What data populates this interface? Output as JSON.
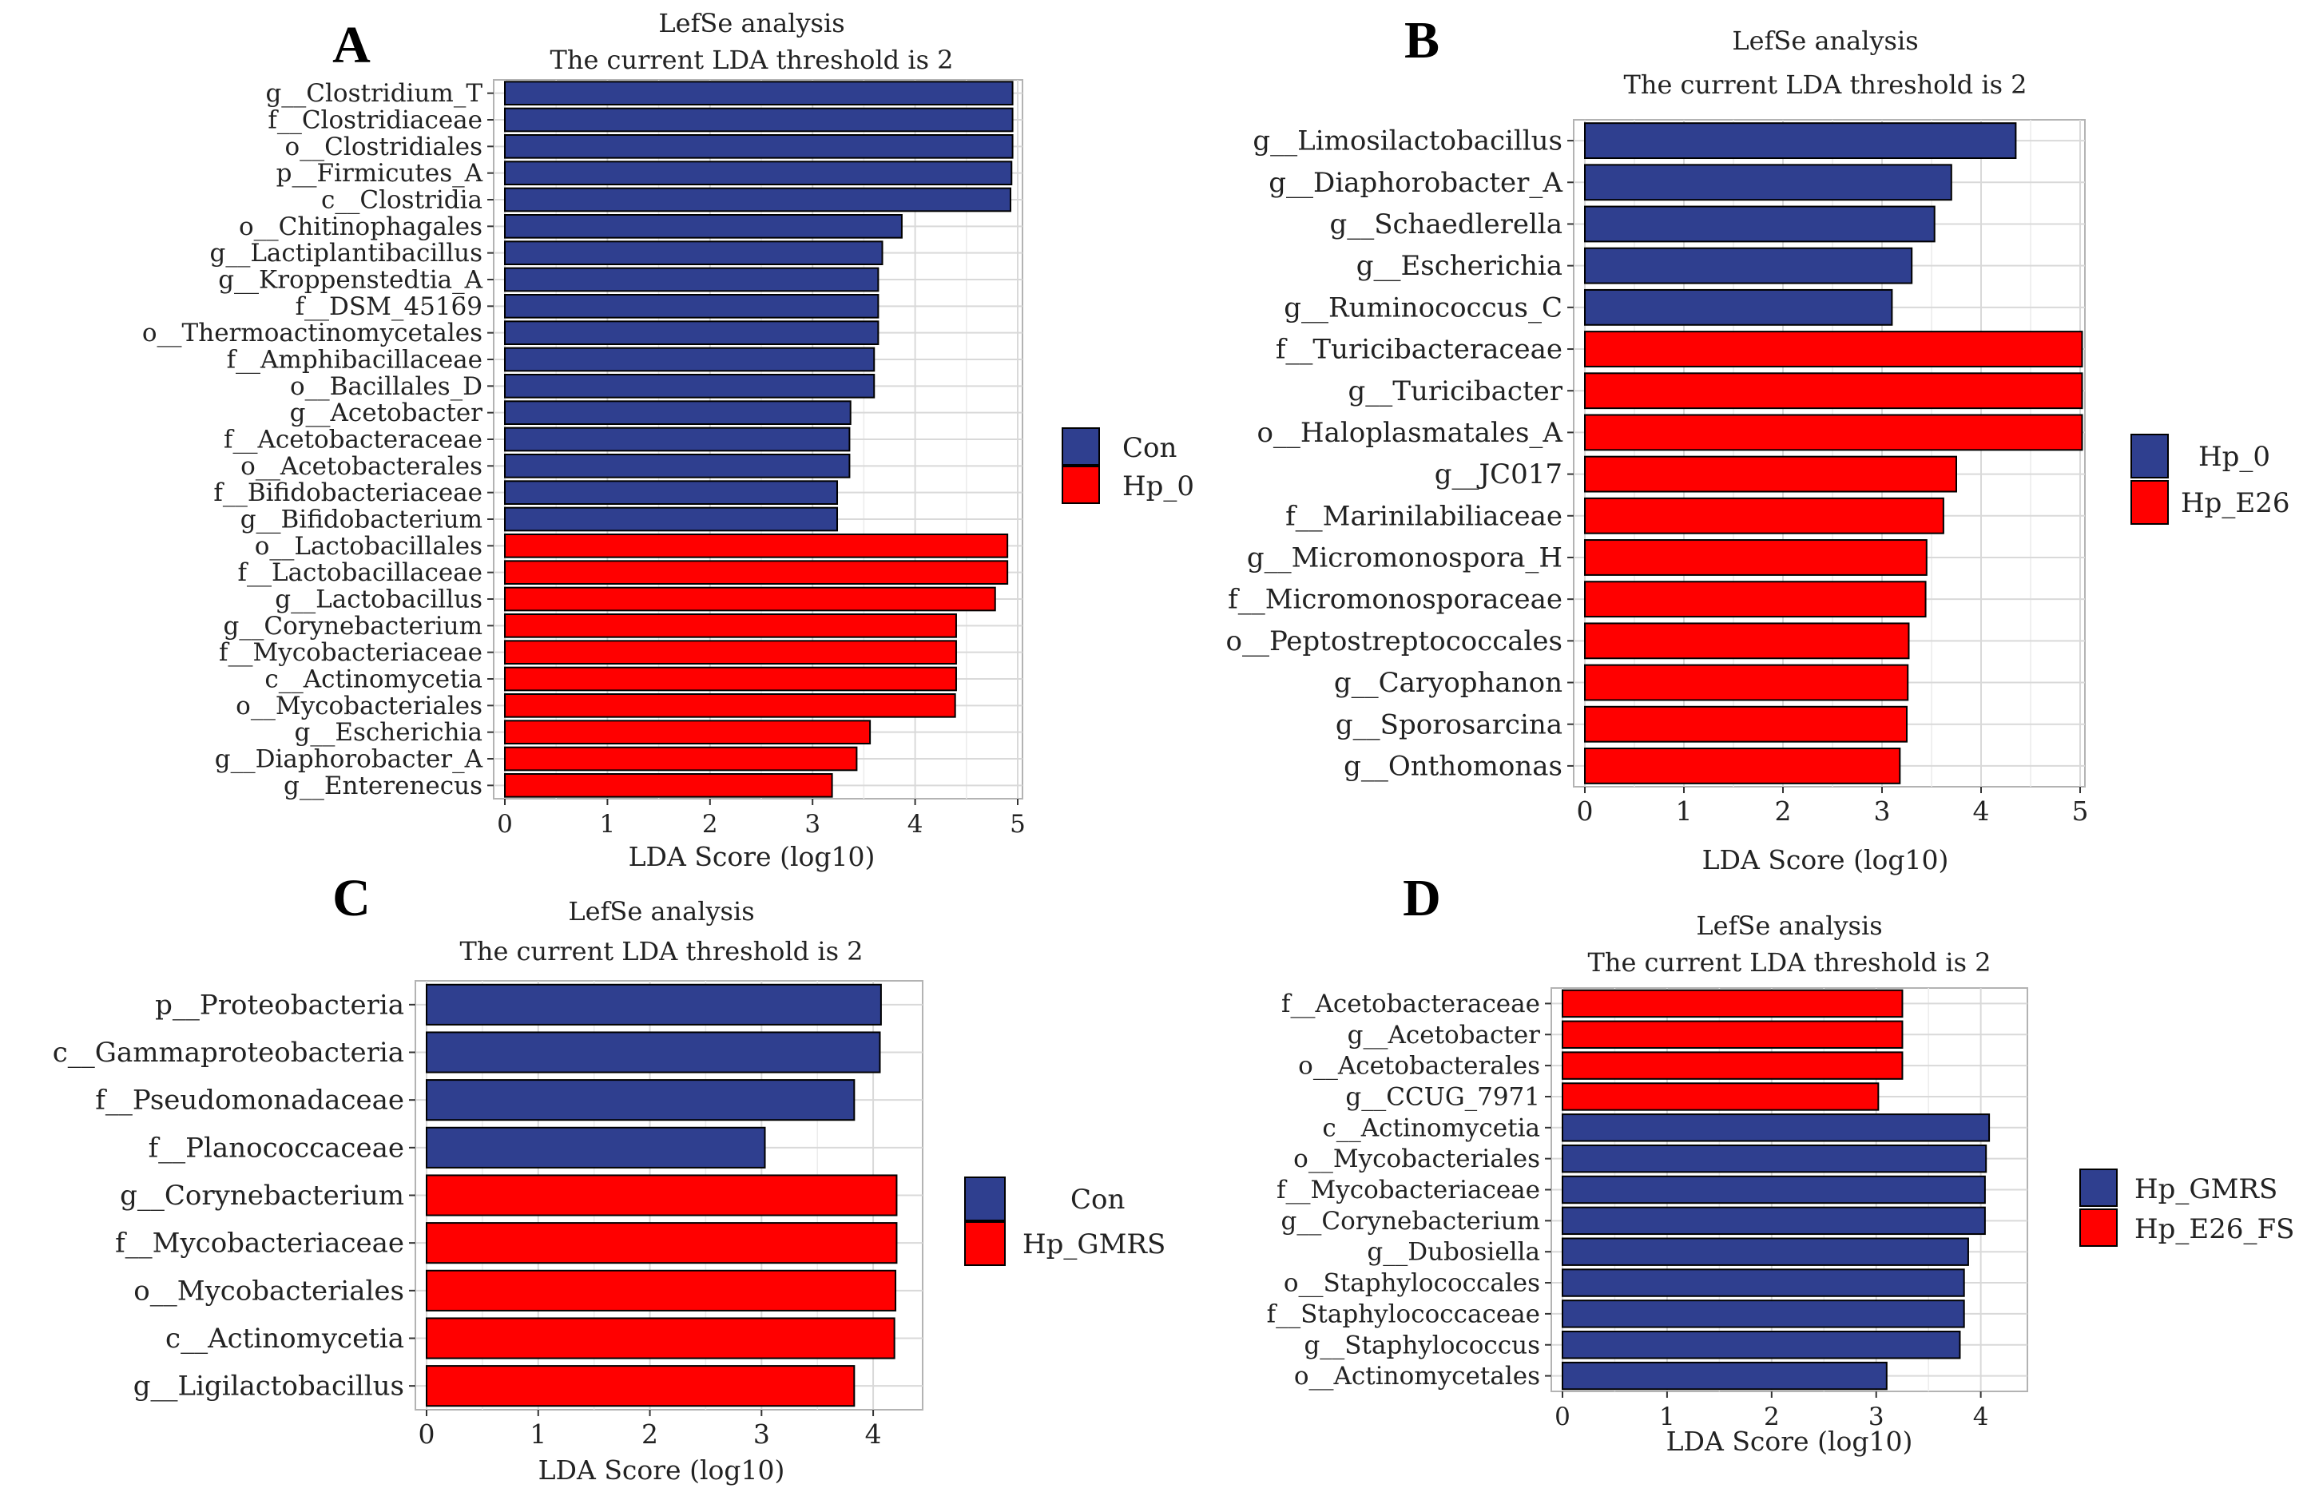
{
  "colors": {
    "group_blue": "#2f3f8f",
    "group_red": "#ff0000",
    "grid": "#d9d9d9",
    "panel_border": "#b3b3b3"
  },
  "chart_data": [
    {
      "panel": "A",
      "type": "bar",
      "orientation": "horizontal",
      "title": "LefSe analysis",
      "subtitle": "The current LDA threshold is 2",
      "xlabel": "LDA Score (log10)",
      "xlim": [
        0,
        5
      ],
      "xticks": [
        "0",
        "1",
        "2",
        "3",
        "4",
        "5"
      ],
      "legend": [
        {
          "label": "Con",
          "color": "#2f3f8f"
        },
        {
          "label": "Hp_0",
          "color": "#ff0000"
        }
      ],
      "categories": [
        "g__Clostridium_T",
        "f__Clostridiaceae",
        "o__Clostridiales",
        "p__Firmicutes_A",
        "c__Clostridia",
        "o__Chitinophagales",
        "g__Lactiplantibacillus",
        "g__Kroppenstedtia_A",
        "f__DSM_45169",
        "o__Thermoactinomycetales",
        "f__Amphibacillaceae",
        "o__Bacillales_D",
        "g__Acetobacter",
        "f__Acetobacteraceae",
        "o__Acetobacterales",
        "f__Bifidobacteriaceae",
        "g__Bifidobacterium",
        "o__Lactobacillales",
        "f__Lactobacillaceae",
        "g__Lactobacillus",
        "g__Corynebacterium",
        "f__Mycobacteriaceae",
        "c__Actinomycetia",
        "o__Mycobacteriales",
        "g__Escherichia",
        "g__Diaphorobacter_A",
        "g__Enterenecus"
      ],
      "values": [
        4.95,
        4.95,
        4.95,
        4.94,
        4.93,
        3.87,
        3.68,
        3.64,
        3.64,
        3.64,
        3.6,
        3.6,
        3.37,
        3.36,
        3.36,
        3.24,
        3.24,
        4.9,
        4.9,
        4.78,
        4.4,
        4.4,
        4.4,
        4.39,
        3.56,
        3.43,
        3.19
      ],
      "groups": [
        "Con",
        "Con",
        "Con",
        "Con",
        "Con",
        "Con",
        "Con",
        "Con",
        "Con",
        "Con",
        "Con",
        "Con",
        "Con",
        "Con",
        "Con",
        "Con",
        "Con",
        "Hp_0",
        "Hp_0",
        "Hp_0",
        "Hp_0",
        "Hp_0",
        "Hp_0",
        "Hp_0",
        "Hp_0",
        "Hp_0",
        "Hp_0"
      ]
    },
    {
      "panel": "B",
      "type": "bar",
      "orientation": "horizontal",
      "title": "LefSe analysis",
      "subtitle": "The current LDA threshold is 2",
      "xlabel": "LDA Score (log10)",
      "xlim": [
        0,
        5
      ],
      "xticks": [
        "0",
        "1",
        "2",
        "3",
        "4",
        "5"
      ],
      "legend": [
        {
          "label": "Hp_0",
          "color": "#2f3f8f"
        },
        {
          "label": "Hp_E26",
          "color": "#ff0000"
        }
      ],
      "categories": [
        "g__Limosilactobacillus",
        "g__Diaphorobacter_A",
        "g__Schaedlerella",
        "g__Escherichia",
        "g__Ruminococcus_C",
        "f__Turicibacteraceae",
        "g__Turicibacter",
        "o__Haloplasmatales_A",
        "g__JC017",
        "f__Marinilabiliaceae",
        "g__Micromonospora_H",
        "f__Micromonosporaceae",
        "o__Peptostreptococcales",
        "g__Caryophanon",
        "g__Sporosarcina",
        "g__Onthomonas"
      ],
      "values": [
        4.35,
        3.7,
        3.53,
        3.3,
        3.1,
        5.02,
        5.02,
        5.02,
        3.75,
        3.62,
        3.45,
        3.44,
        3.27,
        3.26,
        3.25,
        3.18
      ],
      "groups": [
        "Hp_0",
        "Hp_0",
        "Hp_0",
        "Hp_0",
        "Hp_0",
        "Hp_E26",
        "Hp_E26",
        "Hp_E26",
        "Hp_E26",
        "Hp_E26",
        "Hp_E26",
        "Hp_E26",
        "Hp_E26",
        "Hp_E26",
        "Hp_E26",
        "Hp_E26"
      ]
    },
    {
      "panel": "C",
      "type": "bar",
      "orientation": "horizontal",
      "title": "LefSe analysis",
      "subtitle": "The current LDA threshold is 2",
      "xlabel": "LDA Score (log10)",
      "xlim": [
        0,
        4.4
      ],
      "xticks": [
        "0",
        "1",
        "2",
        "3",
        "4"
      ],
      "legend": [
        {
          "label": "Con",
          "color": "#2f3f8f"
        },
        {
          "label": "Hp_GMRS",
          "color": "#ff0000"
        }
      ],
      "categories": [
        "p__Proteobacteria",
        "c__Gammaproteobacteria",
        "f__Pseudomonadaceae",
        "f__Planococcaceae",
        "g__Corynebacterium",
        "f__Mycobacteriaceae",
        "o__Mycobacteriales",
        "c__Actinomycetia",
        "g__Ligilactobacillus"
      ],
      "values": [
        4.07,
        4.06,
        3.83,
        3.03,
        4.21,
        4.21,
        4.2,
        4.19,
        3.83
      ],
      "groups": [
        "Con",
        "Con",
        "Con",
        "Con",
        "Hp_GMRS",
        "Hp_GMRS",
        "Hp_GMRS",
        "Hp_GMRS",
        "Hp_GMRS"
      ]
    },
    {
      "panel": "D",
      "type": "bar",
      "orientation": "horizontal",
      "title": "LefSe analysis",
      "subtitle": "The current LDA threshold is 2",
      "xlabel": "LDA Score (log10)",
      "xlim": [
        0,
        4.4
      ],
      "xticks": [
        "0",
        "1",
        "2",
        "3",
        "4"
      ],
      "legend": [
        {
          "label": "Hp_GMRS",
          "color": "#2f3f8f"
        },
        {
          "label": "Hp_E26_FS",
          "color": "#ff0000"
        }
      ],
      "categories": [
        "f__Acetobacteraceae",
        "g__Acetobacter",
        "o__Acetobacterales",
        "g__CCUG_7971",
        "c__Actinomycetia",
        "o__Mycobacteriales",
        "f__Mycobacteriaceae",
        "g__Corynebacterium",
        "g__Dubosiella",
        "o__Staphylococcales",
        "f__Staphylococcaceae",
        "g__Staphylococcus",
        "o__Actinomycetales"
      ],
      "values": [
        3.25,
        3.25,
        3.25,
        3.02,
        4.08,
        4.05,
        4.04,
        4.04,
        3.88,
        3.84,
        3.84,
        3.8,
        3.1
      ],
      "groups": [
        "Hp_E26_FS",
        "Hp_E26_FS",
        "Hp_E26_FS",
        "Hp_E26_FS",
        "Hp_GMRS",
        "Hp_GMRS",
        "Hp_GMRS",
        "Hp_GMRS",
        "Hp_GMRS",
        "Hp_GMRS",
        "Hp_GMRS",
        "Hp_GMRS",
        "Hp_GMRS"
      ]
    }
  ]
}
